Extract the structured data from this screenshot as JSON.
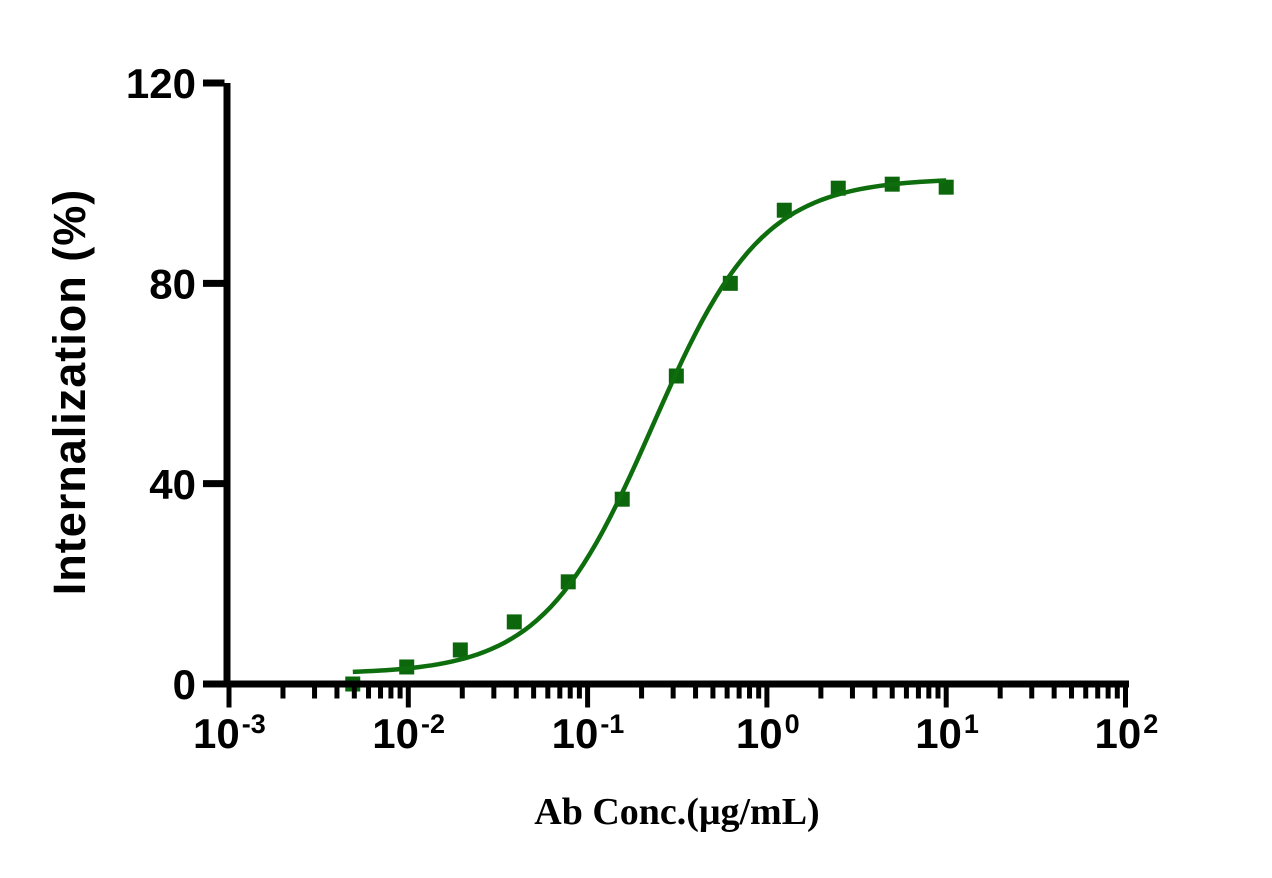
{
  "chart": {
    "y_axis_label": "Internalization (%)",
    "x_axis_label": "Ab Conc.(μg/mL)"
  },
  "chart_data": {
    "type": "scatter",
    "title": "",
    "xlabel": "Ab Conc.(μg/mL)",
    "ylabel": "Internalization (%)",
    "x_scale": "log10",
    "xlim": [
      0.001,
      100
    ],
    "ylim": [
      0,
      120
    ],
    "grid": false,
    "legend": "none",
    "x_ticks": [
      {
        "value": 0.001,
        "base": "10",
        "exp": "-3"
      },
      {
        "value": 0.01,
        "base": "10",
        "exp": "-2"
      },
      {
        "value": 0.1,
        "base": "10",
        "exp": "-1"
      },
      {
        "value": 1,
        "base": "10",
        "exp": "0"
      },
      {
        "value": 10,
        "base": "10",
        "exp": "1"
      },
      {
        "value": 100,
        "base": "10",
        "exp": "2"
      }
    ],
    "y_ticks": [
      {
        "value": 0,
        "label": "0"
      },
      {
        "value": 40,
        "label": "40"
      },
      {
        "value": 80,
        "label": "80"
      },
      {
        "value": 120,
        "label": "120"
      }
    ],
    "minor_tick_multiples": [
      2,
      3,
      4,
      5,
      6,
      7,
      8,
      9
    ],
    "axis_color": "#000000",
    "background": "#ffffff",
    "series": [
      {
        "marker": "square",
        "marker_color": "#0c660c",
        "line_color": "#0e6e0e",
        "points": [
          {
            "x": 0.0049,
            "y": 0
          },
          {
            "x": 0.0098,
            "y": 3.4
          },
          {
            "x": 0.0195,
            "y": 6.8
          },
          {
            "x": 0.039,
            "y": 12.4
          },
          {
            "x": 0.078,
            "y": 20.4
          },
          {
            "x": 0.156,
            "y": 36.9
          },
          {
            "x": 0.3125,
            "y": 61.5
          },
          {
            "x": 0.625,
            "y": 80
          },
          {
            "x": 1.25,
            "y": 94.6
          },
          {
            "x": 2.5,
            "y": 99
          },
          {
            "x": 5,
            "y": 99.8
          },
          {
            "x": 10,
            "y": 99.2
          }
        ],
        "fit": {
          "model": "four_parameter_logistic",
          "bottom": 2,
          "top": 101,
          "ec50": 0.23,
          "hill": 1.42
        }
      }
    ]
  }
}
